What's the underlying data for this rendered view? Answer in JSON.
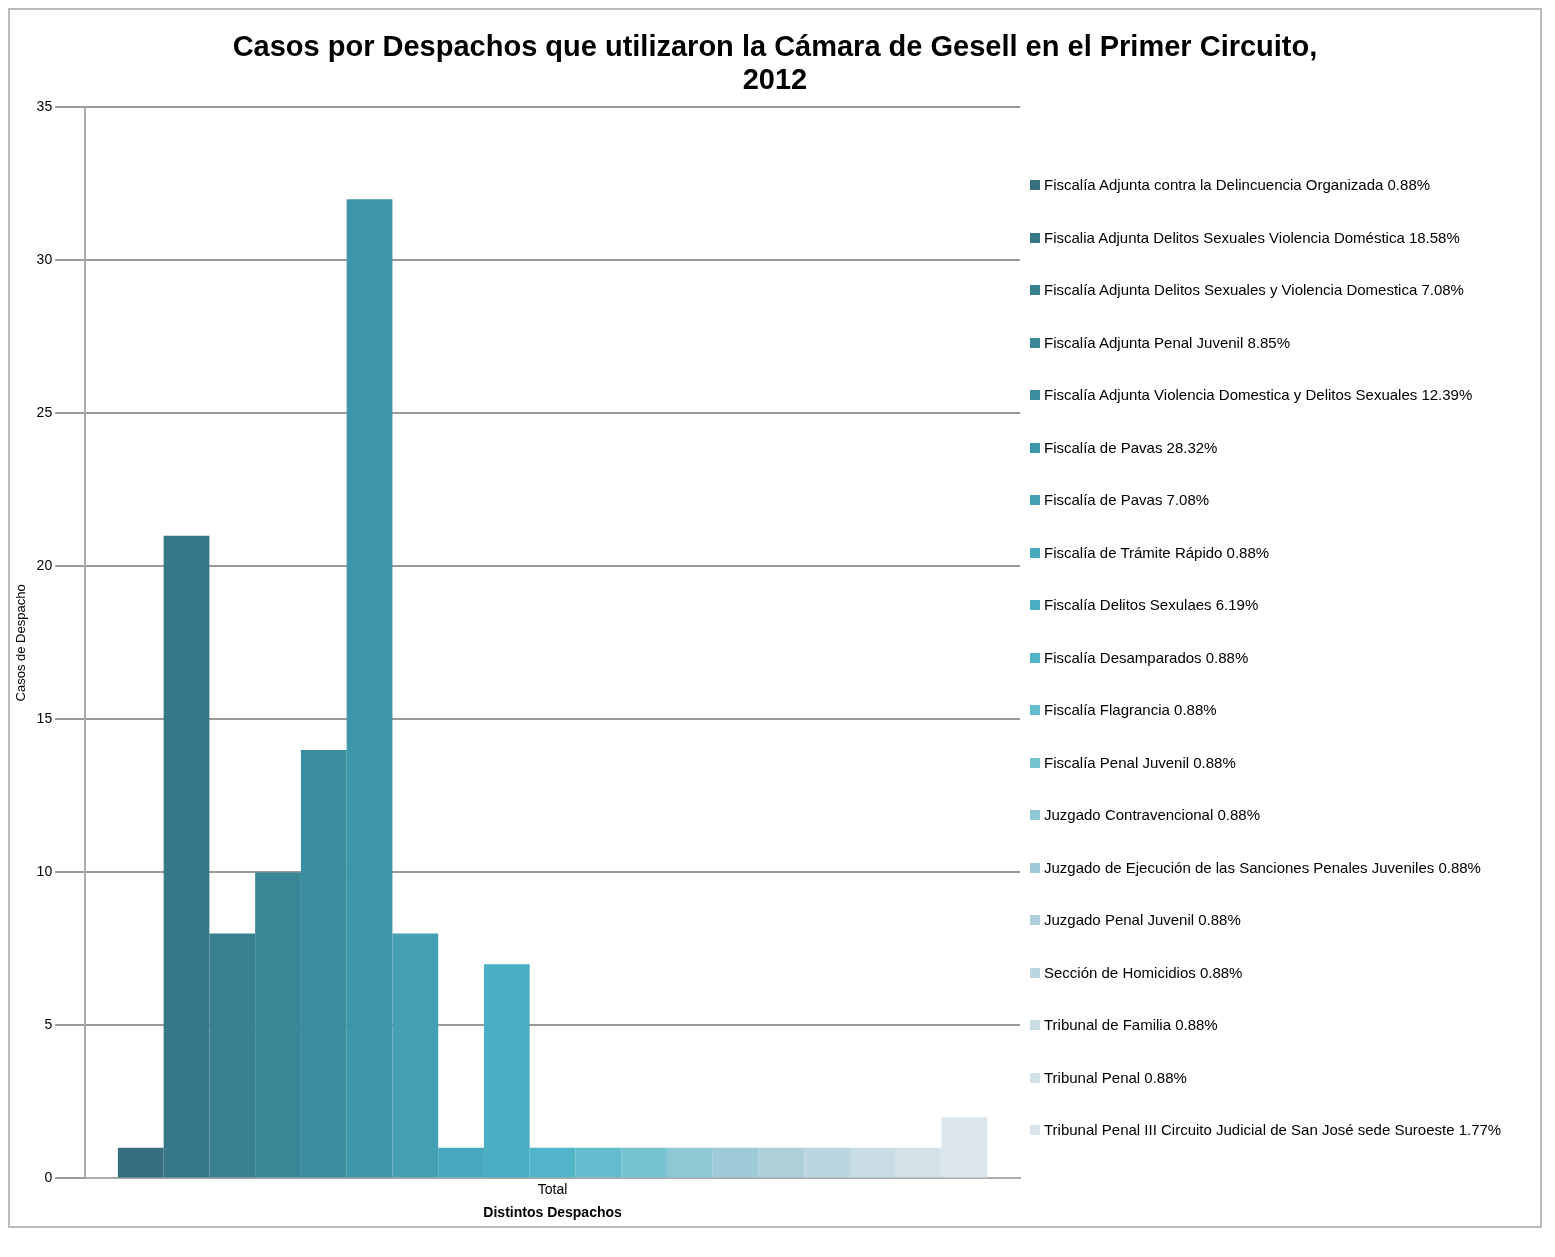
{
  "chart_data": {
    "type": "bar",
    "title": "Casos por Despachos que utilizaron la Cámara de Gesell en el Primer Circuito, 2012",
    "xlabel": "Distintos Despachos",
    "ylabel": "Casos de Despacho",
    "categories": [
      "Total"
    ],
    "ylim": [
      0,
      35
    ],
    "yticks": [
      0,
      5,
      10,
      15,
      20,
      25,
      30,
      35
    ],
    "grid": "y",
    "legend": "right",
    "series": [
      {
        "name": "Fiscalía Adjunta contra la Delincuencia Organizada 0.88%",
        "color": "#356f7e",
        "values": [
          1
        ]
      },
      {
        "name": "Fiscalia Adjunta Delitos Sexuales Violencia Doméstica 18.58%",
        "color": "#367888",
        "values": [
          21
        ]
      },
      {
        "name": "Fiscalía Adjunta Delitos Sexuales y Violencia Domestica 7.08%",
        "color": "#387f90",
        "values": [
          8
        ]
      },
      {
        "name": "Fiscalía Adjunta Penal Juvenil 8.85%",
        "color": "#3a8798",
        "values": [
          10
        ]
      },
      {
        "name": "Fiscalía Adjunta Violencia Domestica y Delitos Sexuales 12.39%",
        "color": "#3a8ea0",
        "values": [
          14
        ]
      },
      {
        "name": "Fiscalía de Pavas 28.32%",
        "color": "#3e96aa",
        "values": [
          32
        ]
      },
      {
        "name": "Fiscalía de Pavas 7.08%",
        "color": "#45a0b4",
        "values": [
          8
        ]
      },
      {
        "name": "Fiscalía de Trámite Rápido 0.88%",
        "color": "#48a8be",
        "values": [
          1
        ]
      },
      {
        "name": "Fiscalía Delitos Sexulaes 6.19%",
        "color": "#4aaec4",
        "values": [
          7
        ]
      },
      {
        "name": "Fiscalía Desamparados 0.88%",
        "color": "#52b4c8",
        "values": [
          1
        ]
      },
      {
        "name": "Fiscalía Flagrancia 0.88%",
        "color": "#62bcce",
        "values": [
          1
        ]
      },
      {
        "name": "Fiscalía Penal Juvenil 0.88%",
        "color": "#78c3d2",
        "values": [
          1
        ]
      },
      {
        "name": "Juzgado Contravencional 0.88%",
        "color": "#8ec8d4",
        "values": [
          1
        ]
      },
      {
        "name": "Juzgado de Ejecución de las Sanciones Penales Juveniles 0.88%",
        "color": "#9dcad6",
        "values": [
          1
        ]
      },
      {
        "name": "Juzgado Penal Juvenil 0.88%",
        "color": "#aecfda",
        "values": [
          1
        ]
      },
      {
        "name": "Sección de Homicidios 0.88%",
        "color": "#bbd6de",
        "values": [
          1
        ]
      },
      {
        "name": "Tribunal de Familia 0.88%",
        "color": "#c8dde4",
        "values": [
          1
        ]
      },
      {
        "name": "Tribunal Penal 0.88%",
        "color": "#d2e2e8",
        "values": [
          1
        ]
      },
      {
        "name": "Tribunal Penal III Circuito Judicial de San José sede Suroeste 1.77%",
        "color": "#dce5ee",
        "values": [
          2
        ]
      }
    ]
  }
}
